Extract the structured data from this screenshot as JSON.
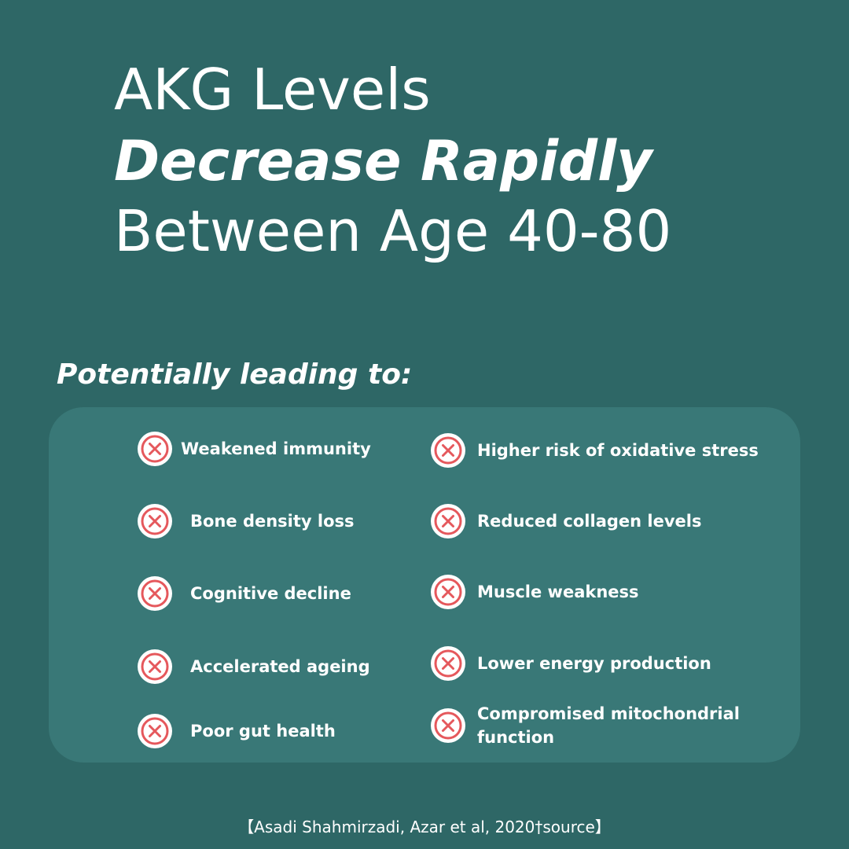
{
  "title": {
    "line1": "AKG Levels",
    "line2": "Decrease Rapidly",
    "line3": "Between Age 40-80"
  },
  "subtitle": "Potentially leading to:",
  "colors": {
    "background": "#2e6766",
    "panel": "#397877",
    "icon_red": "#e5585c",
    "text": "#ffffff"
  },
  "left_items": [
    {
      "label": "Weakened immunity",
      "icon": "x-circle-icon"
    },
    {
      "label": "Bone density loss",
      "icon": "x-circle-icon"
    },
    {
      "label": "Cognitive decline",
      "icon": "x-circle-icon"
    },
    {
      "label": "Accelerated ageing",
      "icon": "x-circle-icon"
    },
    {
      "label": "Poor gut health",
      "icon": "x-circle-icon"
    }
  ],
  "right_items": [
    {
      "label": "Higher risk of oxidative stress",
      "icon": "x-circle-icon"
    },
    {
      "label": "Reduced collagen levels",
      "icon": "x-circle-icon"
    },
    {
      "label": "Muscle weakness",
      "icon": "x-circle-icon"
    },
    {
      "label": "Lower energy production",
      "icon": "x-circle-icon"
    },
    {
      "label": "Compromised mitochondrial function",
      "icon": "x-circle-icon"
    }
  ],
  "source": "【Asadi Shahmirzadi, Azar et al, 2020†source】"
}
